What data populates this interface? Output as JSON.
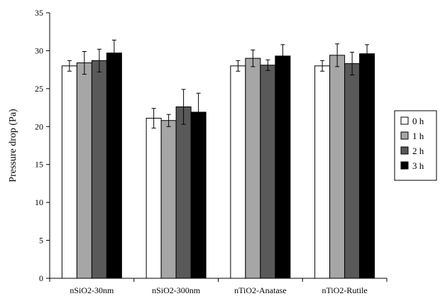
{
  "chart_data": {
    "type": "bar",
    "title": "",
    "xlabel": "",
    "ylabel": "Pressure drop (Pa)",
    "ylim": [
      0,
      35
    ],
    "yticks": [
      0,
      5,
      10,
      15,
      20,
      25,
      30,
      35
    ],
    "grid": false,
    "legend_position": "right",
    "categories": [
      "nSiO2-30nm",
      "nSiO2-300nm",
      "nTiO2-Anatase",
      "nTiO2-Rutile"
    ],
    "series": [
      {
        "name": "0 h",
        "color": "#ffffff",
        "values": [
          28.0,
          21.1,
          28.0,
          28.0
        ],
        "errors": [
          0.7,
          1.3,
          0.7,
          0.7
        ]
      },
      {
        "name": "1 h",
        "color": "#a6a6a6",
        "values": [
          28.4,
          20.8,
          29.0,
          29.4
        ],
        "errors": [
          1.5,
          0.8,
          1.1,
          1.5
        ]
      },
      {
        "name": "2 h",
        "color": "#595959",
        "values": [
          28.7,
          22.6,
          28.1,
          28.3
        ],
        "errors": [
          1.5,
          2.3,
          0.7,
          1.5
        ]
      },
      {
        "name": "3 h",
        "color": "#000000",
        "values": [
          29.7,
          21.9,
          29.3,
          29.6
        ],
        "errors": [
          1.7,
          2.5,
          1.5,
          1.2
        ]
      }
    ]
  }
}
